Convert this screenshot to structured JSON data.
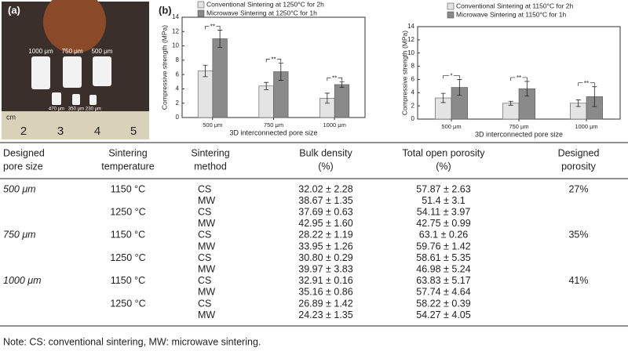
{
  "photo": {
    "label": "(a)",
    "large_samples": [
      "1000 μm",
      "750 μm",
      "500 μm"
    ],
    "small_samples": [
      "470 μm",
      "350 μm",
      "230 μm"
    ],
    "ruler_unit": "cm",
    "ruler_numbers": [
      "2",
      "3",
      "4",
      "5"
    ]
  },
  "chart_data": [
    {
      "type": "bar",
      "panel_label": "(b)",
      "y_label": "Compressive strength (MPa)",
      "x_label": "3D interconnected pore size",
      "categories": [
        "500 μm",
        "750 μm",
        "1000 μm"
      ],
      "series": [
        {
          "name": "Conventional Sintering at 1250°C for 2h",
          "color": "#e4e4e4",
          "values": [
            6.5,
            4.4,
            2.7
          ],
          "errors": [
            0.8,
            0.5,
            0.7
          ]
        },
        {
          "name": "Microwave Sintering at 1250°C for 1h",
          "color": "#8a8a8a",
          "values": [
            11.0,
            6.4,
            4.6
          ],
          "errors": [
            1.2,
            1.2,
            0.4
          ]
        }
      ],
      "significance": [
        "**",
        "**",
        "**"
      ],
      "ylim": [
        0,
        14
      ],
      "yticks": [
        0,
        2,
        4,
        6,
        8,
        10,
        12,
        14
      ]
    },
    {
      "type": "bar",
      "y_label": "Compressive strength (MPa)",
      "x_label": "3D interconnected pore size",
      "categories": [
        "500 μm",
        "750 μm",
        "1000 μm"
      ],
      "series": [
        {
          "name": "Conventional Sintering at 1150°C for 2h",
          "color": "#e4e4e4",
          "values": [
            3.2,
            2.4,
            2.4
          ],
          "errors": [
            0.7,
            0.3,
            0.5
          ]
        },
        {
          "name": "Microwave Sintering at 1150°C for 1h",
          "color": "#8a8a8a",
          "values": [
            4.8,
            4.6,
            3.4
          ],
          "errors": [
            1.2,
            1.1,
            1.5
          ]
        }
      ],
      "significance": [
        "*",
        "**",
        "**"
      ],
      "ylim": [
        0,
        14
      ],
      "yticks": [
        0,
        2,
        4,
        6,
        8,
        10,
        12,
        14
      ]
    }
  ],
  "table": {
    "header": [
      [
        "Designed",
        "pore size"
      ],
      [
        "Sintering",
        "temperature"
      ],
      [
        "Sintering",
        "method"
      ],
      [
        "Bulk density",
        "(%)"
      ],
      [
        "Total open porosity",
        "(%)"
      ],
      [
        "Designed",
        "porosity"
      ]
    ],
    "groups": [
      {
        "pore": "500 μm",
        "porosity": "27%",
        "temps": [
          {
            "temp": "1150 °C",
            "rows": [
              {
                "method": "CS",
                "density": "32.02 ± 2.28",
                "open": "57.87 ± 2.63"
              },
              {
                "method": "MW",
                "density": "38.67 ± 1.35",
                "open": "51.4 ± 3.1"
              }
            ]
          },
          {
            "temp": "1250 °C",
            "rows": [
              {
                "method": "CS",
                "density": "37.69 ± 0.63",
                "open": "54.11 ± 3.97"
              },
              {
                "method": "MW",
                "density": "42.95 ± 1.60",
                "open": "42.75 ± 0.99"
              }
            ]
          }
        ]
      },
      {
        "pore": "750 μm",
        "porosity": "35%",
        "temps": [
          {
            "temp": "1150 °C",
            "rows": [
              {
                "method": "CS",
                "density": "28.22 ± 1.19",
                "open": "63.1 ± 0.26"
              },
              {
                "method": "MW",
                "density": "33.95 ± 1.26",
                "open": "59.76 ± 1.42"
              }
            ]
          },
          {
            "temp": "1250 °C",
            "rows": [
              {
                "method": "CS",
                "density": "30.80 ± 0.29",
                "open": "58.61 ± 5.35"
              },
              {
                "method": "MW",
                "density": "39.97 ± 3.83",
                "open": "46.98 ± 5.24"
              }
            ]
          }
        ]
      },
      {
        "pore": "1000 μm",
        "porosity": "41%",
        "temps": [
          {
            "temp": "1150 °C",
            "rows": [
              {
                "method": "CS",
                "density": "32.91 ± 0.16",
                "open": "63.83 ± 5.17"
              },
              {
                "method": "MW",
                "density": "35.16 ± 0.86",
                "open": "57.74 ± 4.64"
              }
            ]
          },
          {
            "temp": "1250 °C",
            "rows": [
              {
                "method": "CS",
                "density": "26.89 ± 1.42",
                "open": "58.22 ± 0.39"
              },
              {
                "method": "MW",
                "density": "24.23 ± 1.35",
                "open": "54.27 ± 4.05"
              }
            ]
          }
        ]
      }
    ],
    "note": "Note: CS: conventional sintering, MW: microwave sintering."
  }
}
